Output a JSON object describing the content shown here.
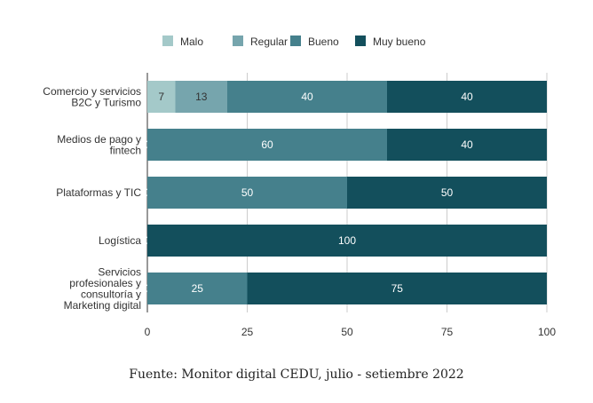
{
  "chart_data": {
    "type": "bar",
    "orientation": "horizontal",
    "stacked": true,
    "categories": [
      [
        "Comercio y servicios",
        "B2C y Turismo"
      ],
      [
        "Medios de pago y",
        "fintech"
      ],
      [
        "Plataformas y TIC"
      ],
      [
        "Logística"
      ],
      [
        "Servicios",
        "profesionales y",
        "consultoría y",
        "Marketing digital"
      ]
    ],
    "series": [
      {
        "name": "Malo",
        "color": "#a4c9c9",
        "values": [
          7,
          0,
          0,
          0,
          0
        ]
      },
      {
        "name": "Regular",
        "color": "#76a5ad",
        "values": [
          13,
          0,
          0,
          0,
          0
        ]
      },
      {
        "name": "Bueno",
        "color": "#45808c",
        "values": [
          40,
          60,
          50,
          0,
          25
        ]
      },
      {
        "name": "Muy bueno",
        "color": "#134f5c",
        "values": [
          40,
          40,
          50,
          100,
          75
        ]
      }
    ],
    "xlim": [
      0,
      100
    ],
    "xticks": [
      0,
      25,
      50,
      75,
      100
    ],
    "grid": true,
    "legend": "top-center",
    "title": "",
    "xlabel": "",
    "ylabel": ""
  },
  "caption": "Fuente: Monitor digital CEDU, julio - setiembre 2022"
}
